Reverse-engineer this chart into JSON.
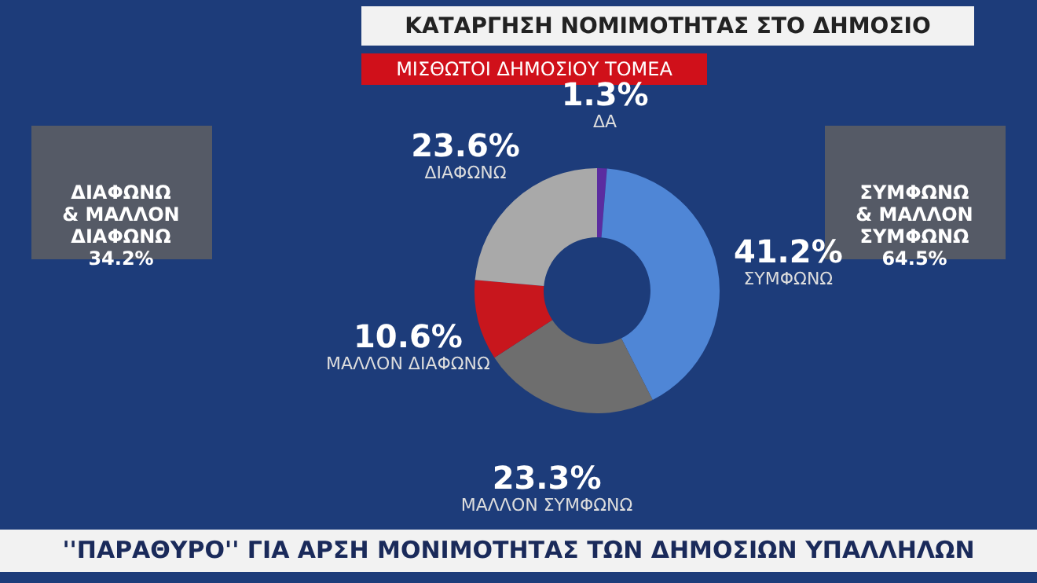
{
  "chart_data": {
    "type": "donut",
    "title": "ΚΑΤΑΡΓΗΣΗ ΝΟΜΙΜΟΤΗΤΑΣ ΣΤΟ ΔΗΜΟΣΙΟ",
    "subtitle": "ΜΙΣΘΩΤΟΙ ΔΗΜΟΣΙΟΥ ΤΟΜΕΑ",
    "categories": [
      "ΔΑ",
      "ΣΥΜΦΩΝΩ",
      "ΜΑΛΛΟΝ ΣΥΜΦΩΝΩ",
      "ΜΑΛΛΟΝ ΔΙΑΦΩΝΩ",
      "ΔΙΑΦΩΝΩ"
    ],
    "values": [
      1.3,
      41.2,
      23.3,
      10.6,
      23.6
    ],
    "colors": [
      "#5b2ca0",
      "#4f86d6",
      "#6e6e6e",
      "#c8161d",
      "#a9a9a9"
    ],
    "value_labels": [
      "1.3%",
      "41.2%",
      "23.3%",
      "10.6%",
      "23.6%"
    ],
    "annotations": [
      "ΔΙΑΦΩΝΩ\n& ΜΑΛΛΟΝ\nΔΙΑΦΩΝΩ\n34.2%",
      "ΣΥΜΦΩΝΩ\n& ΜΑΛΛΟΝ\nΣΥΜΦΩΝΩ\n64.5%",
      "''ΠΑΡΑΘΥΡΟ'' ΓΙΑ ΑΡΣΗ ΜΟΝΙΜΟΤΗΤΑΣ ΤΩΝ ΔΗΜΟΣΙΩΝ ΥΠΑΛΛΗΛΩΝ"
    ]
  }
}
